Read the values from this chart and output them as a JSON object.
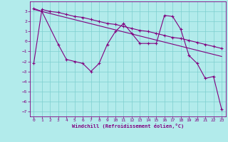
{
  "xlabel": "Windchill (Refroidissement éolien,°C)",
  "bg_color": "#b2ebeb",
  "line_color": "#800080",
  "grid_color": "#7dcfcf",
  "xlim": [
    -0.5,
    23.5
  ],
  "ylim": [
    -7.5,
    4.0
  ],
  "xticks": [
    0,
    1,
    2,
    3,
    4,
    5,
    6,
    7,
    8,
    9,
    10,
    11,
    12,
    13,
    14,
    15,
    16,
    17,
    18,
    19,
    20,
    21,
    22,
    23
  ],
  "yticks": [
    -7,
    -6,
    -5,
    -4,
    -3,
    -2,
    -1,
    0,
    1,
    2,
    3
  ],
  "series1_x": [
    0,
    1,
    3,
    4,
    5,
    6,
    7,
    8,
    9,
    10,
    11,
    12,
    13,
    14,
    15,
    16,
    17,
    18,
    19,
    20,
    21,
    22,
    23
  ],
  "series1_y": [
    3.3,
    3.0,
    -0.3,
    -1.8,
    -2.0,
    -2.2,
    -3.0,
    -2.2,
    -0.3,
    1.0,
    1.8,
    0.8,
    -0.2,
    -0.2,
    -0.2,
    2.6,
    2.5,
    1.2,
    -1.4,
    -2.2,
    -3.7,
    -3.5,
    -6.8
  ],
  "series2_x": [
    0,
    1,
    2,
    3,
    4,
    5,
    6,
    7,
    8,
    9,
    10,
    11,
    12,
    13,
    14,
    15,
    16,
    17,
    18,
    19,
    20,
    21,
    22,
    23
  ],
  "series2_y": [
    -2.2,
    3.2,
    3.0,
    2.9,
    2.7,
    2.5,
    2.4,
    2.2,
    2.0,
    1.8,
    1.7,
    1.5,
    1.3,
    1.1,
    1.0,
    0.8,
    0.6,
    0.4,
    0.3,
    0.1,
    -0.1,
    -0.3,
    -0.5,
    -0.7
  ],
  "trend_x": [
    0,
    23
  ],
  "trend_y": [
    3.2,
    -1.5
  ]
}
